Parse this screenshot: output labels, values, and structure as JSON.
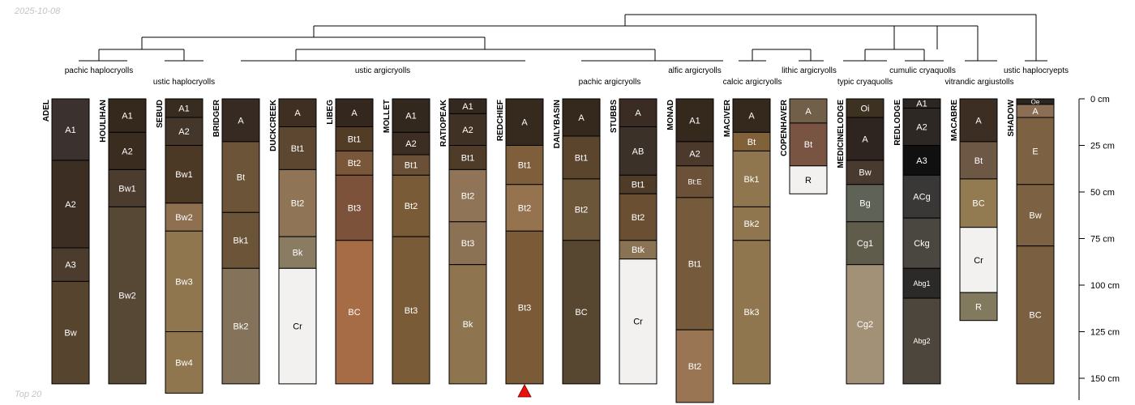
{
  "date": "2025-10-08",
  "footer_note": "Top 20",
  "depth_unit": "cm",
  "depth_ticks": [
    {
      "value": 0,
      "label": "0 cm"
    },
    {
      "value": 25,
      "label": "25 cm"
    },
    {
      "value": 50,
      "label": "50 cm"
    },
    {
      "value": 75,
      "label": "75 cm"
    },
    {
      "value": 100,
      "label": "100 cm"
    },
    {
      "value": 125,
      "label": "125 cm"
    },
    {
      "value": 150,
      "label": "150 cm"
    }
  ],
  "marker_profile": "REDCHIEF",
  "marker_color": "#e8110f",
  "taxa": [
    {
      "label": "pachic haplocryolls"
    },
    {
      "label": "ustic haplocryolls"
    },
    {
      "label": "ustic argicryolls"
    },
    {
      "label": "pachic argicryolls"
    },
    {
      "label": "alfic argicryolls"
    },
    {
      "label": "calcic argicryolls"
    },
    {
      "label": "lithic argicryolls"
    },
    {
      "label": "typic cryaquolls"
    },
    {
      "label": "cumulic cryaquolls"
    },
    {
      "label": "vitrandic argiustolls"
    },
    {
      "label": "ustic haplocryepts"
    }
  ],
  "profiles": [
    {
      "name": "ADEL",
      "horizons": [
        {
          "name": "A1",
          "top": 0,
          "bottom": 33,
          "color": "#3b3230"
        },
        {
          "name": "A2",
          "top": 33,
          "bottom": 80,
          "color": "#3c2e22"
        },
        {
          "name": "A3",
          "top": 80,
          "bottom": 98,
          "color": "#4b3c2e"
        },
        {
          "name": "Bw",
          "top": 98,
          "bottom": 153,
          "color": "#56442f"
        }
      ]
    },
    {
      "name": "HOULIHAN",
      "horizons": [
        {
          "name": "A1",
          "top": 0,
          "bottom": 18,
          "color": "#35291e"
        },
        {
          "name": "A2",
          "top": 18,
          "bottom": 38,
          "color": "#3a2c1f"
        },
        {
          "name": "Bw1",
          "top": 38,
          "bottom": 58,
          "color": "#4c3c2e"
        },
        {
          "name": "Bw2",
          "top": 58,
          "bottom": 153,
          "color": "#574835"
        }
      ]
    },
    {
      "name": "SEBUD",
      "horizons": [
        {
          "name": "A1",
          "top": 0,
          "bottom": 10,
          "color": "#382b1f"
        },
        {
          "name": "A2",
          "top": 10,
          "bottom": 25,
          "color": "#44372a"
        },
        {
          "name": "Bw1",
          "top": 25,
          "bottom": 56,
          "color": "#4c3925"
        },
        {
          "name": "Bw2",
          "top": 56,
          "bottom": 71,
          "color": "#8e7051"
        },
        {
          "name": "Bw3",
          "top": 71,
          "bottom": 125,
          "color": "#8f764f"
        },
        {
          "name": "Bw4",
          "top": 125,
          "bottom": 158,
          "color": "#8f764f"
        }
      ]
    },
    {
      "name": "BRIDGER",
      "horizons": [
        {
          "name": "A",
          "top": 0,
          "bottom": 23,
          "color": "#362a22"
        },
        {
          "name": "Bt",
          "top": 23,
          "bottom": 61,
          "color": "#6c5438"
        },
        {
          "name": "Bk1",
          "top": 61,
          "bottom": 91,
          "color": "#6c5438"
        },
        {
          "name": "Bk2",
          "top": 91,
          "bottom": 153,
          "color": "#84735a"
        }
      ]
    },
    {
      "name": "DUCKCREEK",
      "horizons": [
        {
          "name": "A",
          "top": 0,
          "bottom": 15,
          "color": "#3e2f22"
        },
        {
          "name": "Bt1",
          "top": 15,
          "bottom": 38,
          "color": "#5d4730"
        },
        {
          "name": "Bt2",
          "top": 38,
          "bottom": 74,
          "color": "#8f7556"
        },
        {
          "name": "Bk",
          "top": 74,
          "bottom": 91,
          "color": "#8a7c62"
        },
        {
          "name": "Cr",
          "top": 91,
          "bottom": 153,
          "color": "#f2f1f0"
        }
      ]
    },
    {
      "name": "LIBEG",
      "horizons": [
        {
          "name": "A",
          "top": 0,
          "bottom": 15,
          "color": "#33271e"
        },
        {
          "name": "Bt1",
          "top": 15,
          "bottom": 28,
          "color": "#523c25"
        },
        {
          "name": "Bt2",
          "top": 28,
          "bottom": 41,
          "color": "#7b5739"
        },
        {
          "name": "Bt3",
          "top": 41,
          "bottom": 76,
          "color": "#7d523a"
        },
        {
          "name": "BC",
          "top": 76,
          "bottom": 153,
          "color": "#a56c45"
        }
      ]
    },
    {
      "name": "MOLLET",
      "horizons": [
        {
          "name": "A1",
          "top": 0,
          "bottom": 18,
          "color": "#33281e"
        },
        {
          "name": "A2",
          "top": 18,
          "bottom": 30,
          "color": "#3c2e22"
        },
        {
          "name": "Bt1",
          "top": 30,
          "bottom": 41,
          "color": "#6a5036"
        },
        {
          "name": "Bt2",
          "top": 41,
          "bottom": 74,
          "color": "#7a5b37"
        },
        {
          "name": "Bt3",
          "top": 74,
          "bottom": 153,
          "color": "#7a5b37"
        }
      ]
    },
    {
      "name": "RATIOPEAK",
      "horizons": [
        {
          "name": "A1",
          "top": 0,
          "bottom": 8,
          "color": "#33291e"
        },
        {
          "name": "A2",
          "top": 8,
          "bottom": 25,
          "color": "#3f3123"
        },
        {
          "name": "Bt1",
          "top": 25,
          "bottom": 38,
          "color": "#4e3b28"
        },
        {
          "name": "Bt2",
          "top": 38,
          "bottom": 66,
          "color": "#8f7458"
        },
        {
          "name": "Bt3",
          "top": 66,
          "bottom": 89,
          "color": "#8b7254"
        },
        {
          "name": "Bk",
          "top": 89,
          "bottom": 153,
          "color": "#8f754f"
        }
      ]
    },
    {
      "name": "REDCHIEF",
      "horizons": [
        {
          "name": "A",
          "top": 0,
          "bottom": 25,
          "color": "#352a1d"
        },
        {
          "name": "Bt1",
          "top": 25,
          "bottom": 46,
          "color": "#7f5f3b"
        },
        {
          "name": "Bt2",
          "top": 46,
          "bottom": 71,
          "color": "#94734e"
        },
        {
          "name": "Bt3",
          "top": 71,
          "bottom": 153,
          "color": "#7b5b37"
        }
      ]
    },
    {
      "name": "DAILYBASIN",
      "horizons": [
        {
          "name": "A",
          "top": 0,
          "bottom": 20,
          "color": "#35291e"
        },
        {
          "name": "Bt1",
          "top": 20,
          "bottom": 43,
          "color": "#5b452d"
        },
        {
          "name": "Bt2",
          "top": 43,
          "bottom": 76,
          "color": "#6c5639"
        },
        {
          "name": "BC",
          "top": 76,
          "bottom": 153,
          "color": "#574630"
        }
      ]
    },
    {
      "name": "STUBBS",
      "horizons": [
        {
          "name": "A",
          "top": 0,
          "bottom": 15,
          "color": "#3a2c23"
        },
        {
          "name": "AB",
          "top": 15,
          "bottom": 41,
          "color": "#3c3129"
        },
        {
          "name": "Bt1",
          "top": 41,
          "bottom": 51,
          "color": "#4e3b28"
        },
        {
          "name": "Bt2",
          "top": 51,
          "bottom": 76,
          "color": "#6a4f33"
        },
        {
          "name": "Btk",
          "top": 76,
          "bottom": 86,
          "color": "#8a7254"
        },
        {
          "name": "Cr",
          "top": 86,
          "bottom": 153,
          "color": "#f2f1f0"
        }
      ]
    },
    {
      "name": "MONAD",
      "horizons": [
        {
          "name": "A1",
          "top": 0,
          "bottom": 23,
          "color": "#35291e"
        },
        {
          "name": "A2",
          "top": 23,
          "bottom": 36,
          "color": "#4b3a2c"
        },
        {
          "name": "Bt:E",
          "top": 36,
          "bottom": 53,
          "color": "#6a5138"
        },
        {
          "name": "Bt1",
          "top": 53,
          "bottom": 124,
          "color": "#755a3c"
        },
        {
          "name": "Bt2",
          "top": 124,
          "bottom": 163,
          "color": "#9a7553"
        }
      ]
    },
    {
      "name": "MACIVER",
      "horizons": [
        {
          "name": "A",
          "top": 0,
          "bottom": 18,
          "color": "#35291e"
        },
        {
          "name": "Bt",
          "top": 18,
          "bottom": 28,
          "color": "#80613a"
        },
        {
          "name": "Bk1",
          "top": 28,
          "bottom": 58,
          "color": "#8f764f"
        },
        {
          "name": "Bk2",
          "top": 58,
          "bottom": 76,
          "color": "#8f764f"
        },
        {
          "name": "Bk3",
          "top": 76,
          "bottom": 153,
          "color": "#8f764f"
        }
      ]
    },
    {
      "name": "COPENHAVER",
      "horizons": [
        {
          "name": "A",
          "top": 0,
          "bottom": 13,
          "color": "#725f4a"
        },
        {
          "name": "Bt",
          "top": 13,
          "bottom": 36,
          "color": "#7a5443"
        },
        {
          "name": "R",
          "top": 36,
          "bottom": 51,
          "color": "#f2f1f0"
        }
      ]
    },
    {
      "name": "MEDICINELODGE",
      "horizons": [
        {
          "name": "Oi",
          "top": 0,
          "bottom": 10,
          "color": "#3d3122"
        },
        {
          "name": "A",
          "top": 10,
          "bottom": 33,
          "color": "#2e2420"
        },
        {
          "name": "Bw",
          "top": 33,
          "bottom": 46,
          "color": "#483a2e"
        },
        {
          "name": "Bg",
          "top": 46,
          "bottom": 66,
          "color": "#5f6256"
        },
        {
          "name": "Cg1",
          "top": 66,
          "bottom": 89,
          "color": "#5f5c4c"
        },
        {
          "name": "Cg2",
          "top": 89,
          "bottom": 153,
          "color": "#a39177"
        }
      ]
    },
    {
      "name": "REDLODGE",
      "horizons": [
        {
          "name": "A1",
          "top": 0,
          "bottom": 5,
          "color": "#2b2622"
        },
        {
          "name": "A2",
          "top": 5,
          "bottom": 25,
          "color": "#2e2825"
        },
        {
          "name": "A3",
          "top": 25,
          "bottom": 41,
          "color": "#101010"
        },
        {
          "name": "ACg",
          "top": 41,
          "bottom": 64,
          "color": "#3a3837"
        },
        {
          "name": "Ckg",
          "top": 64,
          "bottom": 91,
          "color": "#4a4740"
        },
        {
          "name": "Abg1",
          "top": 91,
          "bottom": 107,
          "color": "#2b2a29"
        },
        {
          "name": "Abg2",
          "top": 107,
          "bottom": 153,
          "color": "#4c463c"
        }
      ]
    },
    {
      "name": "MACABRE",
      "horizons": [
        {
          "name": "A",
          "top": 0,
          "bottom": 23,
          "color": "#3c2e22"
        },
        {
          "name": "Bt",
          "top": 23,
          "bottom": 43,
          "color": "#6d5745"
        },
        {
          "name": "BC",
          "top": 43,
          "bottom": 69,
          "color": "#927a51"
        },
        {
          "name": "Cr",
          "top": 69,
          "bottom": 104,
          "color": "#f2f1f0"
        },
        {
          "name": "R",
          "top": 104,
          "bottom": 119,
          "color": "#827a5f"
        }
      ]
    },
    {
      "name": "SHADOW",
      "horizons": [
        {
          "name": "Oe",
          "top": 0,
          "bottom": 3,
          "color": "#2b2520"
        },
        {
          "name": "A",
          "top": 3,
          "bottom": 10,
          "color": "#8b6f55"
        },
        {
          "name": "E",
          "top": 10,
          "bottom": 46,
          "color": "#7c6243"
        },
        {
          "name": "Bw",
          "top": 46,
          "bottom": 79,
          "color": "#7c6243"
        },
        {
          "name": "BC",
          "top": 79,
          "bottom": 153,
          "color": "#7a5f40"
        }
      ]
    }
  ]
}
